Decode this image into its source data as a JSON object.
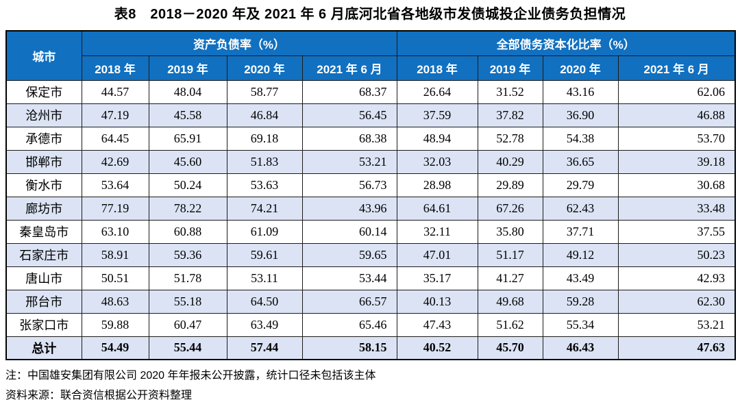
{
  "title": "表8　2018－2020 年及 2021 年 6 月底河北省各地级市发债城投企业债务负担情况",
  "table": {
    "city_header": "城市",
    "groups": [
      "资产负债率（%）",
      "全部债务资本化比率（%）"
    ],
    "year_headers": [
      "2018 年",
      "2019 年",
      "2020 年",
      "2021 年 6 月",
      "2018 年",
      "2019 年",
      "2020 年",
      "2021 年 6 月"
    ],
    "rows": [
      {
        "city": "保定市",
        "values": [
          "44.57",
          "48.04",
          "58.77",
          "68.37",
          "26.64",
          "31.52",
          "43.16",
          "62.06"
        ]
      },
      {
        "city": "沧州市",
        "values": [
          "47.19",
          "45.58",
          "46.84",
          "56.45",
          "37.59",
          "37.82",
          "36.90",
          "46.88"
        ]
      },
      {
        "city": "承德市",
        "values": [
          "64.45",
          "65.91",
          "69.18",
          "68.38",
          "48.94",
          "52.78",
          "54.38",
          "53.70"
        ]
      },
      {
        "city": "邯郸市",
        "values": [
          "42.69",
          "45.60",
          "51.83",
          "53.21",
          "32.03",
          "40.29",
          "36.65",
          "39.18"
        ]
      },
      {
        "city": "衡水市",
        "values": [
          "53.64",
          "50.24",
          "53.63",
          "56.73",
          "28.98",
          "29.89",
          "29.79",
          "30.68"
        ]
      },
      {
        "city": "廊坊市",
        "values": [
          "77.19",
          "78.22",
          "74.21",
          "43.96",
          "64.61",
          "67.26",
          "62.43",
          "33.48"
        ]
      },
      {
        "city": "秦皇岛市",
        "values": [
          "63.10",
          "60.88",
          "61.09",
          "60.14",
          "32.11",
          "35.80",
          "37.71",
          "37.55"
        ]
      },
      {
        "city": "石家庄市",
        "values": [
          "58.91",
          "59.36",
          "59.61",
          "59.65",
          "47.01",
          "51.17",
          "49.12",
          "50.23"
        ]
      },
      {
        "city": "唐山市",
        "values": [
          "50.51",
          "51.78",
          "53.11",
          "53.44",
          "35.17",
          "41.27",
          "43.49",
          "42.93"
        ]
      },
      {
        "city": "邢台市",
        "values": [
          "48.63",
          "55.18",
          "64.50",
          "66.57",
          "40.13",
          "49.68",
          "59.28",
          "62.30"
        ]
      },
      {
        "city": "张家口市",
        "values": [
          "59.88",
          "60.47",
          "63.49",
          "65.46",
          "47.43",
          "51.62",
          "55.34",
          "53.21"
        ]
      }
    ],
    "total_row": {
      "city": "总计",
      "values": [
        "54.49",
        "55.44",
        "57.44",
        "58.15",
        "40.52",
        "45.70",
        "46.43",
        "47.63"
      ]
    }
  },
  "notes": {
    "note": "注：中国雄安集团有限公司 2020 年年报未公开披露，统计口径未包括该主体",
    "source": "资料来源：联合资信根据公开资料整理"
  },
  "colors": {
    "header_blue": "#1170C0",
    "stripe": "#DBE3F4"
  }
}
